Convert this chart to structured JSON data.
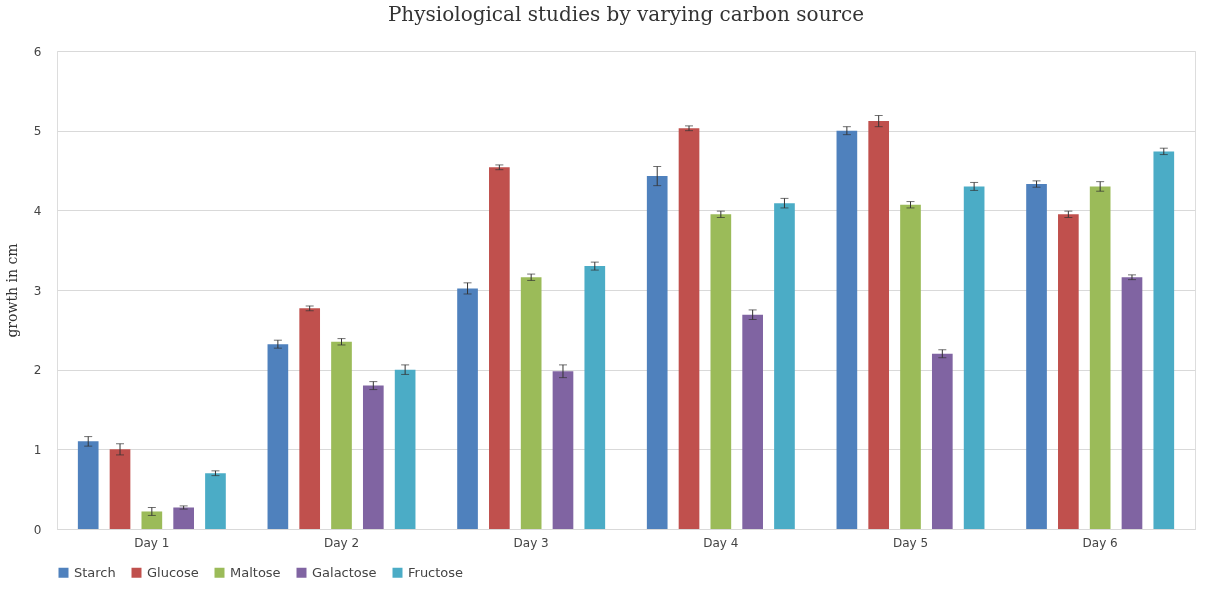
{
  "chart_data": {
    "type": "bar",
    "title": "Physiological studies by varying carbon source",
    "ylabel": "growth in cm",
    "categories": [
      "Day 1",
      "Day 2",
      "Day 3",
      "Day 4",
      "Day 5",
      "Day 6"
    ],
    "series": [
      {
        "name": "Starch",
        "color": "#4f81bd",
        "values": [
          1.1,
          2.32,
          3.02,
          4.43,
          5.0,
          4.33
        ],
        "errors": [
          0.06,
          0.05,
          0.07,
          0.12,
          0.05,
          0.04
        ]
      },
      {
        "name": "Glucose",
        "color": "#c0504d",
        "values": [
          1.0,
          2.77,
          4.54,
          5.03,
          5.12,
          3.95
        ],
        "errors": [
          0.07,
          0.03,
          0.03,
          0.03,
          0.07,
          0.04
        ]
      },
      {
        "name": "Maltose",
        "color": "#9bbb59",
        "values": [
          0.22,
          2.35,
          3.16,
          3.95,
          4.07,
          4.3
        ],
        "errors": [
          0.05,
          0.04,
          0.04,
          0.04,
          0.04,
          0.06
        ]
      },
      {
        "name": "Galactose",
        "color": "#8064a2",
        "values": [
          0.27,
          1.8,
          1.98,
          2.69,
          2.2,
          3.16
        ],
        "errors": [
          0.02,
          0.05,
          0.08,
          0.06,
          0.05,
          0.03
        ]
      },
      {
        "name": "Fructose",
        "color": "#4bacc6",
        "values": [
          0.7,
          2.0,
          3.3,
          4.09,
          4.3,
          4.74
        ],
        "errors": [
          0.03,
          0.06,
          0.05,
          0.06,
          0.05,
          0.04
        ]
      }
    ],
    "ylim": [
      0,
      6
    ],
    "yticks": [
      0,
      1,
      2,
      3,
      4,
      5,
      6
    ],
    "grid": "y",
    "legend": "bottom"
  }
}
